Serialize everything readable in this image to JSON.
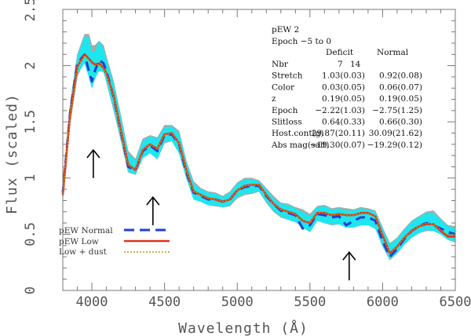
{
  "chart_data": {
    "type": "line",
    "xlabel": "Wavelength (Å)",
    "ylabel": "Flux (scaled)",
    "xlim": [
      3800,
      6500
    ],
    "ylim": [
      0,
      2.5
    ],
    "xticks": [
      {
        "value": 4000,
        "label": "4000"
      },
      {
        "value": 4500,
        "label": "4500"
      },
      {
        "value": 5000,
        "label": "5000"
      },
      {
        "value": 5500,
        "label": "5500"
      },
      {
        "value": 6000,
        "label": "6000"
      },
      {
        "value": 6500,
        "label": "6500"
      }
    ],
    "yticks": [
      {
        "value": 0,
        "label": "0"
      },
      {
        "value": 0.5,
        "label": "0.5"
      },
      {
        "value": 1,
        "label": "1"
      },
      {
        "value": 1.5,
        "label": "1.5"
      },
      {
        "value": 2,
        "label": "2"
      },
      {
        "value": 2.5,
        "label": "2.5"
      }
    ],
    "bands": [
      {
        "label": "grey band",
        "color": "#a8a8a8",
        "x": [
          3800,
          3850,
          3900,
          3950,
          3980,
          4000,
          4020,
          4050,
          4080,
          4100,
          4150,
          4200,
          4250,
          4300,
          4350,
          4400,
          4450,
          4500,
          4550,
          4600,
          4650,
          4700,
          4750,
          4800,
          4850,
          4900,
          4950,
          5000,
          5050,
          5100,
          5150,
          5200,
          5250,
          5300,
          5350,
          5400,
          5450,
          5500,
          5550,
          5600,
          5650,
          5700,
          5750,
          5800,
          5850,
          5900,
          5950,
          6000,
          6050,
          6100,
          6150,
          6200,
          6250,
          6300,
          6350,
          6400,
          6450,
          6500
        ],
        "low": [
          0.8,
          1.48,
          1.9,
          2.05,
          1.95,
          1.88,
          1.92,
          1.95,
          1.95,
          1.85,
          1.6,
          1.33,
          1.05,
          1.03,
          1.18,
          1.23,
          1.17,
          1.31,
          1.33,
          1.23,
          1.0,
          0.81,
          0.79,
          0.76,
          0.75,
          0.74,
          0.75,
          0.82,
          0.85,
          0.86,
          0.88,
          0.78,
          0.7,
          0.65,
          0.63,
          0.61,
          0.57,
          0.52,
          0.62,
          0.6,
          0.58,
          0.59,
          0.57,
          0.56,
          0.58,
          0.58,
          0.56,
          0.39,
          0.27,
          0.33,
          0.41,
          0.47,
          0.51,
          0.53,
          0.53,
          0.5,
          0.45,
          0.43
        ],
        "high": [
          0.94,
          1.66,
          2.1,
          2.28,
          2.28,
          2.18,
          2.18,
          2.22,
          2.18,
          2.08,
          1.86,
          1.55,
          1.24,
          1.17,
          1.35,
          1.38,
          1.36,
          1.47,
          1.47,
          1.42,
          1.15,
          0.97,
          0.91,
          0.88,
          0.87,
          0.84,
          0.88,
          0.96,
          1.0,
          1.0,
          0.98,
          0.91,
          0.84,
          0.78,
          0.77,
          0.74,
          0.72,
          0.68,
          0.75,
          0.76,
          0.73,
          0.74,
          0.73,
          0.72,
          0.74,
          0.73,
          0.71,
          0.56,
          0.42,
          0.47,
          0.55,
          0.62,
          0.66,
          0.7,
          0.71,
          0.64,
          0.58,
          0.57
        ]
      },
      {
        "label": "cyan band",
        "color": "#1fe6ee",
        "x": [
          3800,
          3850,
          3900,
          3950,
          3980,
          4000,
          4020,
          4050,
          4080,
          4100,
          4150,
          4200,
          4250,
          4300,
          4350,
          4400,
          4450,
          4500,
          4550,
          4600,
          4650,
          4700,
          4750,
          4800,
          4850,
          4900,
          4950,
          5000,
          5050,
          5100,
          5150,
          5200,
          5250,
          5300,
          5350,
          5400,
          5450,
          5500,
          5550,
          5600,
          5650,
          5700,
          5750,
          5800,
          5850,
          5900,
          5950,
          6000,
          6050,
          6100,
          6150,
          6200,
          6250,
          6300,
          6350,
          6400,
          6450,
          6500
        ],
        "low": [
          0.82,
          1.52,
          1.93,
          2.02,
          1.9,
          1.8,
          1.88,
          1.96,
          1.94,
          1.86,
          1.62,
          1.34,
          1.06,
          1.03,
          1.18,
          1.22,
          1.17,
          1.32,
          1.33,
          1.22,
          1.0,
          0.81,
          0.79,
          0.76,
          0.76,
          0.74,
          0.76,
          0.83,
          0.86,
          0.87,
          0.88,
          0.79,
          0.71,
          0.66,
          0.63,
          0.61,
          0.56,
          0.52,
          0.62,
          0.6,
          0.59,
          0.59,
          0.56,
          0.56,
          0.58,
          0.58,
          0.55,
          0.4,
          0.28,
          0.33,
          0.41,
          0.47,
          0.51,
          0.54,
          0.53,
          0.5,
          0.45,
          0.44
        ],
        "high": [
          0.92,
          1.64,
          2.08,
          2.26,
          2.25,
          2.12,
          2.12,
          2.22,
          2.15,
          2.05,
          1.84,
          1.53,
          1.22,
          1.15,
          1.33,
          1.37,
          1.35,
          1.45,
          1.46,
          1.4,
          1.14,
          0.95,
          0.9,
          0.87,
          0.86,
          0.83,
          0.87,
          0.95,
          0.99,
          0.99,
          0.97,
          0.9,
          0.82,
          0.77,
          0.76,
          0.73,
          0.7,
          0.66,
          0.74,
          0.75,
          0.72,
          0.73,
          0.71,
          0.71,
          0.73,
          0.72,
          0.7,
          0.55,
          0.41,
          0.46,
          0.54,
          0.61,
          0.65,
          0.69,
          0.69,
          0.63,
          0.57,
          0.56
        ]
      }
    ],
    "series": [
      {
        "name": "pEW Normal",
        "color": "#1f3fd6",
        "dash": "dashed",
        "x": [
          3800,
          3850,
          3900,
          3950,
          3980,
          4000,
          4020,
          4050,
          4080,
          4100,
          4150,
          4200,
          4250,
          4300,
          4350,
          4400,
          4450,
          4500,
          4550,
          4600,
          4650,
          4700,
          4750,
          4800,
          4850,
          4900,
          4950,
          5000,
          5050,
          5100,
          5150,
          5200,
          5250,
          5300,
          5350,
          5400,
          5450,
          5500,
          5550,
          5600,
          5650,
          5700,
          5750,
          5800,
          5850,
          5900,
          5950,
          6000,
          6050,
          6100,
          6150,
          6200,
          6250,
          6300,
          6350,
          6400,
          6450,
          6500
        ],
        "y": [
          0.87,
          1.58,
          2.02,
          2.1,
          1.95,
          1.86,
          1.95,
          2.05,
          2.02,
          1.95,
          1.72,
          1.41,
          1.1,
          1.07,
          1.24,
          1.29,
          1.24,
          1.38,
          1.39,
          1.3,
          1.05,
          0.87,
          0.84,
          0.81,
          0.81,
          0.79,
          0.81,
          0.89,
          0.92,
          0.93,
          0.93,
          0.84,
          0.77,
          0.71,
          0.69,
          0.67,
          0.55,
          0.58,
          0.68,
          0.67,
          0.65,
          0.66,
          0.58,
          0.62,
          0.65,
          0.65,
          0.62,
          0.44,
          0.3,
          0.37,
          0.46,
          0.53,
          0.57,
          0.6,
          0.58,
          0.55,
          0.52,
          0.5
        ]
      },
      {
        "name": "pEW Low",
        "color": "#e0321a",
        "dash": "solid",
        "x": [
          3800,
          3850,
          3900,
          3950,
          3980,
          4000,
          4020,
          4050,
          4080,
          4100,
          4150,
          4200,
          4250,
          4300,
          4350,
          4400,
          4450,
          4500,
          4550,
          4600,
          4650,
          4700,
          4750,
          4800,
          4850,
          4900,
          4950,
          5000,
          5050,
          5100,
          5150,
          5200,
          5250,
          5300,
          5350,
          5400,
          5450,
          5500,
          5550,
          5600,
          5650,
          5700,
          5750,
          5800,
          5850,
          5900,
          5950,
          6000,
          6050,
          6100,
          6150,
          6200,
          6250,
          6300,
          6350,
          6400,
          6450,
          6500
        ],
        "y": [
          0.85,
          1.56,
          1.99,
          2.1,
          2.06,
          2.03,
          2.01,
          2.02,
          1.98,
          1.93,
          1.73,
          1.42,
          1.12,
          1.07,
          1.25,
          1.3,
          1.26,
          1.39,
          1.4,
          1.31,
          1.07,
          0.88,
          0.85,
          0.82,
          0.81,
          0.79,
          0.81,
          0.89,
          0.93,
          0.94,
          0.94,
          0.85,
          0.77,
          0.72,
          0.7,
          0.68,
          0.62,
          0.6,
          0.69,
          0.69,
          0.67,
          0.68,
          0.67,
          0.67,
          0.69,
          0.69,
          0.66,
          0.49,
          0.33,
          0.39,
          0.47,
          0.53,
          0.57,
          0.59,
          0.59,
          0.53,
          0.48,
          0.48
        ]
      },
      {
        "name": "Low + dust",
        "color": "#b79a12",
        "dash": "dotted",
        "x": [
          3800,
          3850,
          3900,
          3950,
          3980,
          4000,
          4020,
          4050,
          4080,
          4100,
          4150,
          4200,
          4250,
          4300,
          4350,
          4400,
          4450,
          4500,
          4550,
          4600,
          4650,
          4700,
          4750,
          4800,
          4850,
          4900,
          4950,
          5000,
          5050,
          5100,
          5150,
          5200,
          5250,
          5300,
          5350,
          5400,
          5450,
          5500,
          5550,
          5600,
          5650,
          5700,
          5750,
          5800,
          5850,
          5900,
          5950,
          6000,
          6050,
          6100,
          6150,
          6200,
          6250,
          6300,
          6350,
          6400,
          6450,
          6500
        ],
        "y": [
          0.84,
          1.55,
          1.98,
          2.09,
          2.05,
          2.02,
          2.0,
          2.01,
          1.97,
          1.92,
          1.72,
          1.41,
          1.12,
          1.07,
          1.25,
          1.3,
          1.26,
          1.39,
          1.4,
          1.31,
          1.07,
          0.88,
          0.85,
          0.82,
          0.81,
          0.79,
          0.81,
          0.89,
          0.93,
          0.94,
          0.94,
          0.85,
          0.77,
          0.72,
          0.7,
          0.68,
          0.62,
          0.6,
          0.69,
          0.69,
          0.67,
          0.68,
          0.67,
          0.67,
          0.69,
          0.69,
          0.66,
          0.49,
          0.33,
          0.39,
          0.47,
          0.53,
          0.57,
          0.6,
          0.59,
          0.54,
          0.49,
          0.49
        ]
      }
    ],
    "arrows": [
      {
        "x": 4010,
        "y_tip": 1.25,
        "y_tail": 1.0
      },
      {
        "x": 4420,
        "y_tip": 0.83,
        "y_tail": 0.58
      },
      {
        "x": 5770,
        "y_tip": 0.34,
        "y_tail": 0.09
      }
    ],
    "legend": {
      "position": "bottom-left"
    },
    "annotation": {
      "position": "top-right",
      "title": "pEW 2",
      "subtitle": "Epoch −5 to 0",
      "col_headers": [
        "Deficit",
        "Normal"
      ],
      "rows": [
        {
          "label": "Nbr",
          "deficit": "7",
          "normal": "14"
        },
        {
          "label": "Stretch",
          "deficit": "1.03(0.03)",
          "normal": "0.92(0.08)"
        },
        {
          "label": "Color",
          "deficit": "0.03(0.05)",
          "normal": "0.06(0.07)"
        },
        {
          "label": "z",
          "deficit": "0.19(0.05)",
          "normal": "0.19(0.05)"
        },
        {
          "label": "Epoch",
          "deficit": "−2.22(1.03)",
          "normal": "−2.75(1.25)"
        },
        {
          "label": "Slitloss",
          "deficit": "0.64(0.33)",
          "normal": "0.66(0.30)"
        },
        {
          "label": "Host.cont(g)",
          "deficit": "29.87(20.11)",
          "normal": "30.09(21.62)"
        },
        {
          "label": "Abs mag(salt)",
          "deficit": "−19.30(0.07)",
          "normal": "−19.29(0.12)"
        }
      ]
    }
  }
}
